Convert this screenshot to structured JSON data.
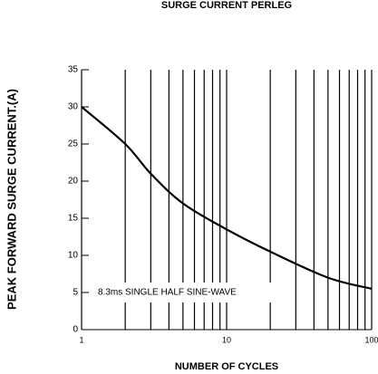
{
  "chart_data": {
    "type": "line",
    "title": "SURGE CURRENT PERLEG",
    "ylabel": "PEAK  FORWARD SURGE CURRENT.(A)",
    "xlabel": "NUMBER OF CYCLES",
    "annotation": "8.3ms SINGLE HALF SINE-WAVE",
    "xscale": "log",
    "xlim": [
      1,
      100
    ],
    "ylim": [
      0,
      35
    ],
    "xticks": [
      1,
      10,
      100
    ],
    "xminor_ticks": [
      2,
      3,
      4,
      5,
      6,
      7,
      8,
      9,
      20,
      30,
      40,
      50,
      60,
      70,
      80,
      90
    ],
    "yticks": [
      0,
      5,
      10,
      15,
      20,
      25,
      30,
      35
    ],
    "grid": true,
    "series": [
      {
        "name": null,
        "color": "#000000",
        "x": [
          1,
          2,
          3,
          5,
          10,
          20,
          50,
          100
        ],
        "values": [
          30,
          25,
          21,
          17,
          13.5,
          10.5,
          7,
          5.5
        ]
      }
    ]
  }
}
